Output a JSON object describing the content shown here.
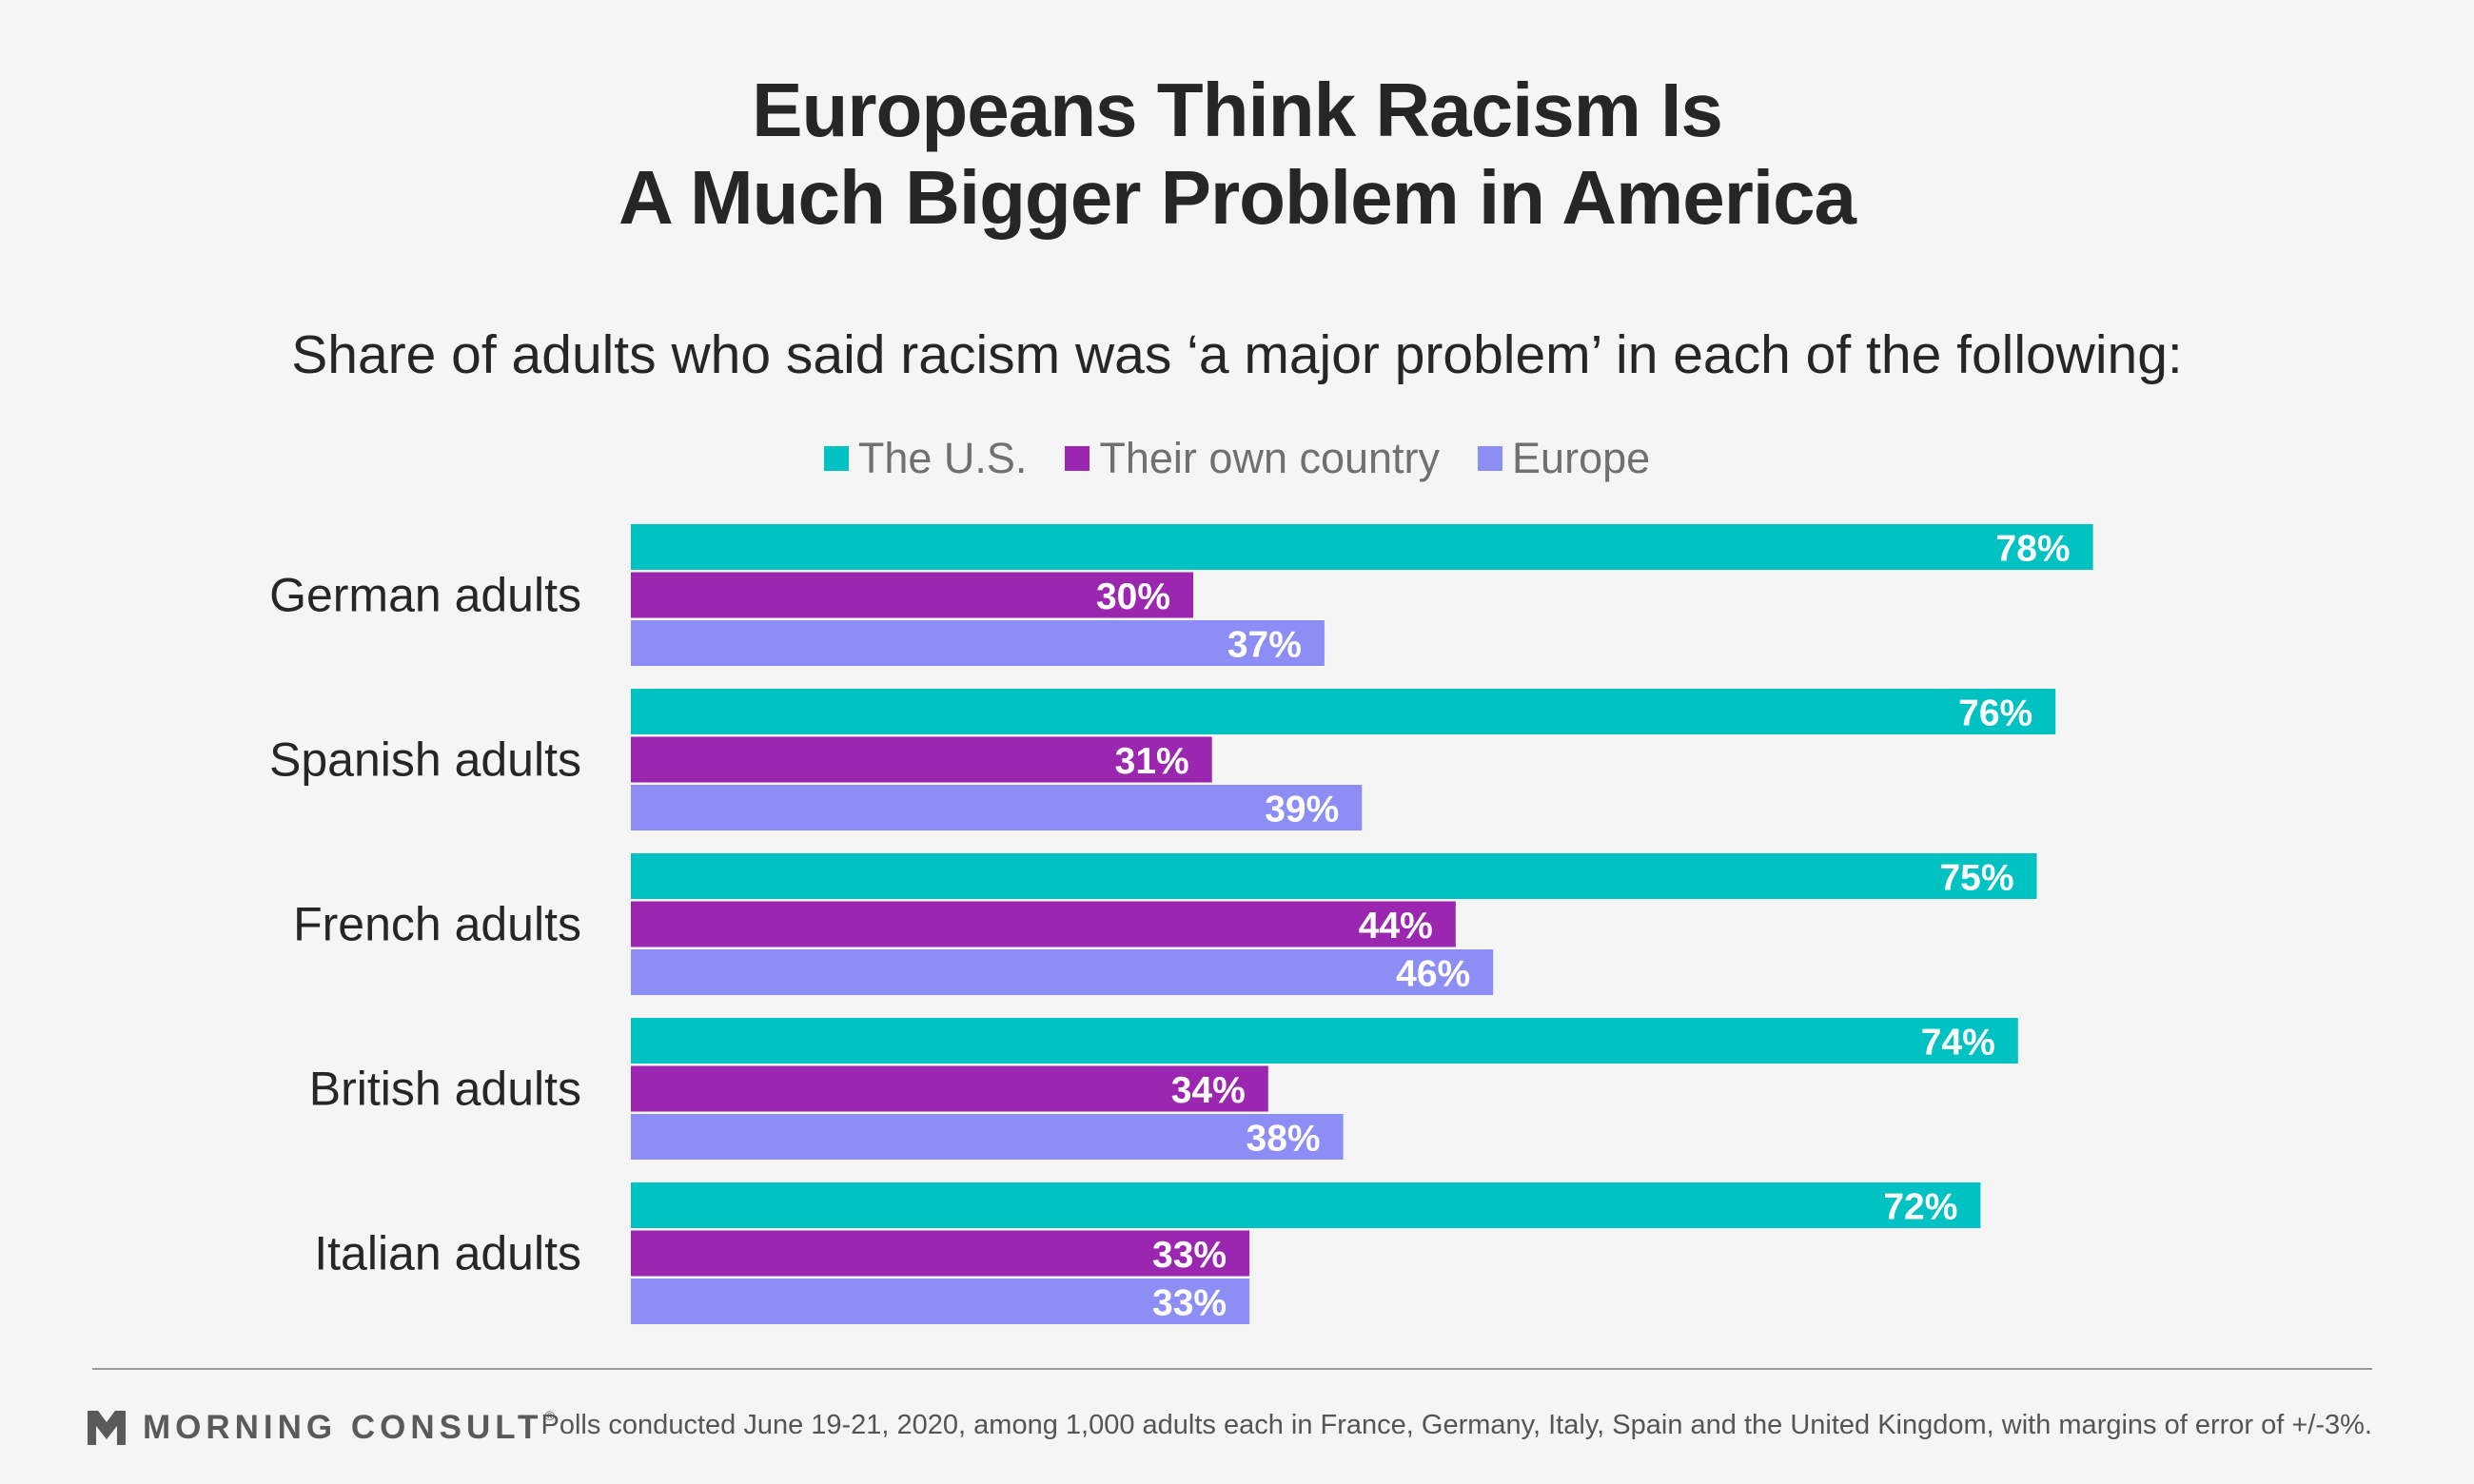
{
  "chart_data": {
    "type": "bar",
    "orientation": "horizontal",
    "title_lines": [
      "Europeans Think Racism Is",
      "A Much Bigger Problem in America"
    ],
    "subtitle": "Share of adults who said racism was ‘a major problem’ in each of the following:",
    "categories": [
      "German adults",
      "Spanish adults",
      "French adults",
      "British adults",
      "Italian adults"
    ],
    "series": [
      {
        "name": "The U.S.",
        "color": "#00c2c2",
        "values": [
          78,
          76,
          75,
          74,
          72
        ]
      },
      {
        "name": "Their own country",
        "color": "#9b27b0",
        "values": [
          30,
          31,
          44,
          34,
          33
        ]
      },
      {
        "name": "Europe",
        "color": "#8c8ef5",
        "values": [
          37,
          39,
          46,
          38,
          33
        ]
      }
    ],
    "value_suffix": "%",
    "xlim": [
      0,
      100
    ],
    "legend_position": "top-center",
    "grid": false
  },
  "footer": {
    "brand": "MORNING CONSULT",
    "brand_mark": "reg",
    "note": "Polls conducted June 19-21, 2020, among 1,000 adults each in France, Germany, Italy, Spain and the United Kingdom, with margins of error of +/-3%."
  },
  "colors": {
    "background": "#f5f5f5",
    "text": "#262626",
    "legend_text": "#707070",
    "bar_label": "#ffffff"
  },
  "icons": {
    "brand_logo": "morning-consult-logo-icon"
  }
}
